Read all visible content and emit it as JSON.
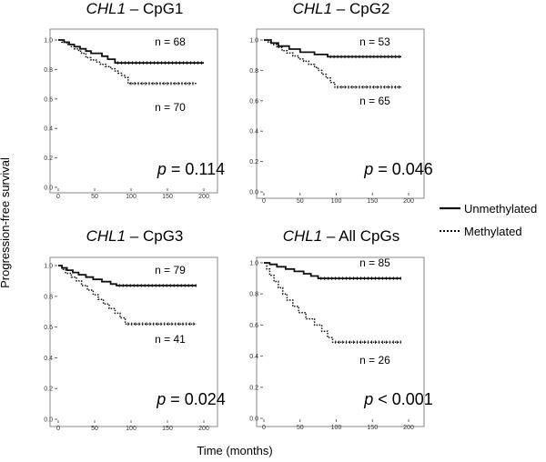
{
  "figure": {
    "ylabel": "Progression-free survival",
    "xlabel": "Time (months)",
    "legend": [
      {
        "label": "Unmethylated",
        "style": "solid"
      },
      {
        "label": "Methylated",
        "style": "dotted"
      }
    ],
    "line_color": "#111111",
    "frame_color": "#888888"
  },
  "chart_data": [
    {
      "type": "line",
      "title_gene": "CHL1",
      "title_rest": " – CpG1",
      "p_label": "p",
      "p_value": "= 0.114",
      "xlim": [
        0,
        210
      ],
      "ylim": [
        0,
        1.0
      ],
      "xticks": [
        0,
        50,
        100,
        150,
        200
      ],
      "yticks": [
        0.0,
        0.2,
        0.4,
        0.6,
        0.8,
        1.0
      ],
      "ytick_labels": [
        "0.0",
        "0.2",
        "0.4",
        "0.6",
        "0.8",
        "1.0"
      ],
      "series": [
        {
          "name": "Unmethylated",
          "n_label": "n = 68",
          "steps": [
            [
              0,
              1.0
            ],
            [
              8,
              0.985
            ],
            [
              15,
              0.97
            ],
            [
              22,
              0.955
            ],
            [
              30,
              0.94
            ],
            [
              38,
              0.925
            ],
            [
              45,
              0.91
            ],
            [
              60,
              0.89
            ],
            [
              68,
              0.87
            ],
            [
              78,
              0.845
            ],
            [
              200,
              0.845
            ]
          ]
        },
        {
          "name": "Methylated",
          "n_label": "n = 70",
          "steps": [
            [
              0,
              1.0
            ],
            [
              5,
              0.985
            ],
            [
              12,
              0.97
            ],
            [
              18,
              0.955
            ],
            [
              22,
              0.94
            ],
            [
              28,
              0.925
            ],
            [
              32,
              0.91
            ],
            [
              38,
              0.88
            ],
            [
              45,
              0.865
            ],
            [
              52,
              0.85
            ],
            [
              58,
              0.835
            ],
            [
              65,
              0.82
            ],
            [
              72,
              0.805
            ],
            [
              78,
              0.79
            ],
            [
              82,
              0.775
            ],
            [
              87,
              0.76
            ],
            [
              92,
              0.745
            ],
            [
              96,
              0.705
            ],
            [
              190,
              0.705
            ]
          ]
        }
      ]
    },
    {
      "type": "line",
      "title_gene": "CHL1",
      "title_rest": " – CpG2",
      "p_label": "p",
      "p_value": "= 0.046",
      "xlim": [
        0,
        210
      ],
      "ylim": [
        0,
        1.0
      ],
      "xticks": [
        0,
        50,
        100,
        150,
        200
      ],
      "yticks": [
        0.0,
        0.2,
        0.4,
        0.6,
        0.8,
        1.0
      ],
      "ytick_labels": [
        "0.0",
        "0.2",
        "0.4",
        "0.6",
        "0.8",
        "1.0"
      ],
      "series": [
        {
          "name": "Unmethylated",
          "n_label": "n = 53",
          "steps": [
            [
              0,
              1.0
            ],
            [
              10,
              0.98
            ],
            [
              20,
              0.96
            ],
            [
              35,
              0.94
            ],
            [
              50,
              0.92
            ],
            [
              70,
              0.905
            ],
            [
              88,
              0.89
            ],
            [
              190,
              0.89
            ]
          ]
        },
        {
          "name": "Methylated",
          "n_label": "n = 65",
          "steps": [
            [
              0,
              1.0
            ],
            [
              6,
              0.985
            ],
            [
              12,
              0.97
            ],
            [
              18,
              0.95
            ],
            [
              25,
              0.93
            ],
            [
              32,
              0.915
            ],
            [
              40,
              0.895
            ],
            [
              48,
              0.875
            ],
            [
              55,
              0.86
            ],
            [
              62,
              0.84
            ],
            [
              70,
              0.82
            ],
            [
              75,
              0.8
            ],
            [
              80,
              0.775
            ],
            [
              86,
              0.75
            ],
            [
              92,
              0.72
            ],
            [
              98,
              0.69
            ],
            [
              190,
              0.69
            ]
          ]
        }
      ]
    },
    {
      "type": "line",
      "title_gene": "CHL1",
      "title_rest": " – CpG3",
      "p_label": "p",
      "p_value": "= 0.024",
      "xlim": [
        0,
        210
      ],
      "ylim": [
        0,
        1.0
      ],
      "xticks": [
        0,
        50,
        100,
        150,
        200
      ],
      "yticks": [
        0.0,
        0.2,
        0.4,
        0.6,
        0.8,
        1.0
      ],
      "ytick_labels": [
        "0.0",
        "0.2",
        "0.4",
        "0.6",
        "0.8",
        "1.0"
      ],
      "series": [
        {
          "name": "Unmethylated",
          "n_label": "n = 79",
          "steps": [
            [
              0,
              1.0
            ],
            [
              5,
              0.985
            ],
            [
              12,
              0.97
            ],
            [
              20,
              0.955
            ],
            [
              28,
              0.94
            ],
            [
              38,
              0.925
            ],
            [
              48,
              0.91
            ],
            [
              60,
              0.895
            ],
            [
              72,
              0.88
            ],
            [
              80,
              0.87
            ],
            [
              190,
              0.87
            ]
          ]
        },
        {
          "name": "Methylated",
          "n_label": "n = 41",
          "steps": [
            [
              0,
              1.0
            ],
            [
              5,
              0.975
            ],
            [
              10,
              0.95
            ],
            [
              18,
              0.925
            ],
            [
              25,
              0.9
            ],
            [
              32,
              0.87
            ],
            [
              40,
              0.84
            ],
            [
              48,
              0.81
            ],
            [
              55,
              0.78
            ],
            [
              62,
              0.75
            ],
            [
              70,
              0.72
            ],
            [
              78,
              0.69
            ],
            [
              85,
              0.66
            ],
            [
              92,
              0.62
            ],
            [
              190,
              0.62
            ]
          ]
        }
      ]
    },
    {
      "type": "line",
      "title_gene": "CHL1",
      "title_rest": " – All CpGs",
      "p_label": "p",
      "p_value": "< 0.001",
      "xlim": [
        0,
        210
      ],
      "ylim": [
        0,
        1.0
      ],
      "xticks": [
        0,
        50,
        100,
        150,
        200
      ],
      "yticks": [
        0.0,
        0.2,
        0.4,
        0.6,
        0.8,
        1.0
      ],
      "ytick_labels": [
        "0.0",
        "0.2",
        "0.4",
        "0.6",
        "0.8",
        "1.0"
      ],
      "series": [
        {
          "name": "Unmethylated",
          "n_label": "n = 85",
          "steps": [
            [
              0,
              1.0
            ],
            [
              8,
              0.99
            ],
            [
              18,
              0.975
            ],
            [
              30,
              0.96
            ],
            [
              42,
              0.945
            ],
            [
              55,
              0.93
            ],
            [
              65,
              0.915
            ],
            [
              75,
              0.9
            ],
            [
              190,
              0.9
            ]
          ]
        },
        {
          "name": "Methylated",
          "n_label": "n = 26",
          "steps": [
            [
              0,
              1.0
            ],
            [
              4,
              0.96
            ],
            [
              8,
              0.92
            ],
            [
              14,
              0.88
            ],
            [
              20,
              0.84
            ],
            [
              26,
              0.8
            ],
            [
              32,
              0.76
            ],
            [
              40,
              0.72
            ],
            [
              48,
              0.68
            ],
            [
              58,
              0.64
            ],
            [
              70,
              0.6
            ],
            [
              80,
              0.56
            ],
            [
              88,
              0.52
            ],
            [
              95,
              0.49
            ],
            [
              190,
              0.49
            ]
          ]
        }
      ]
    }
  ]
}
